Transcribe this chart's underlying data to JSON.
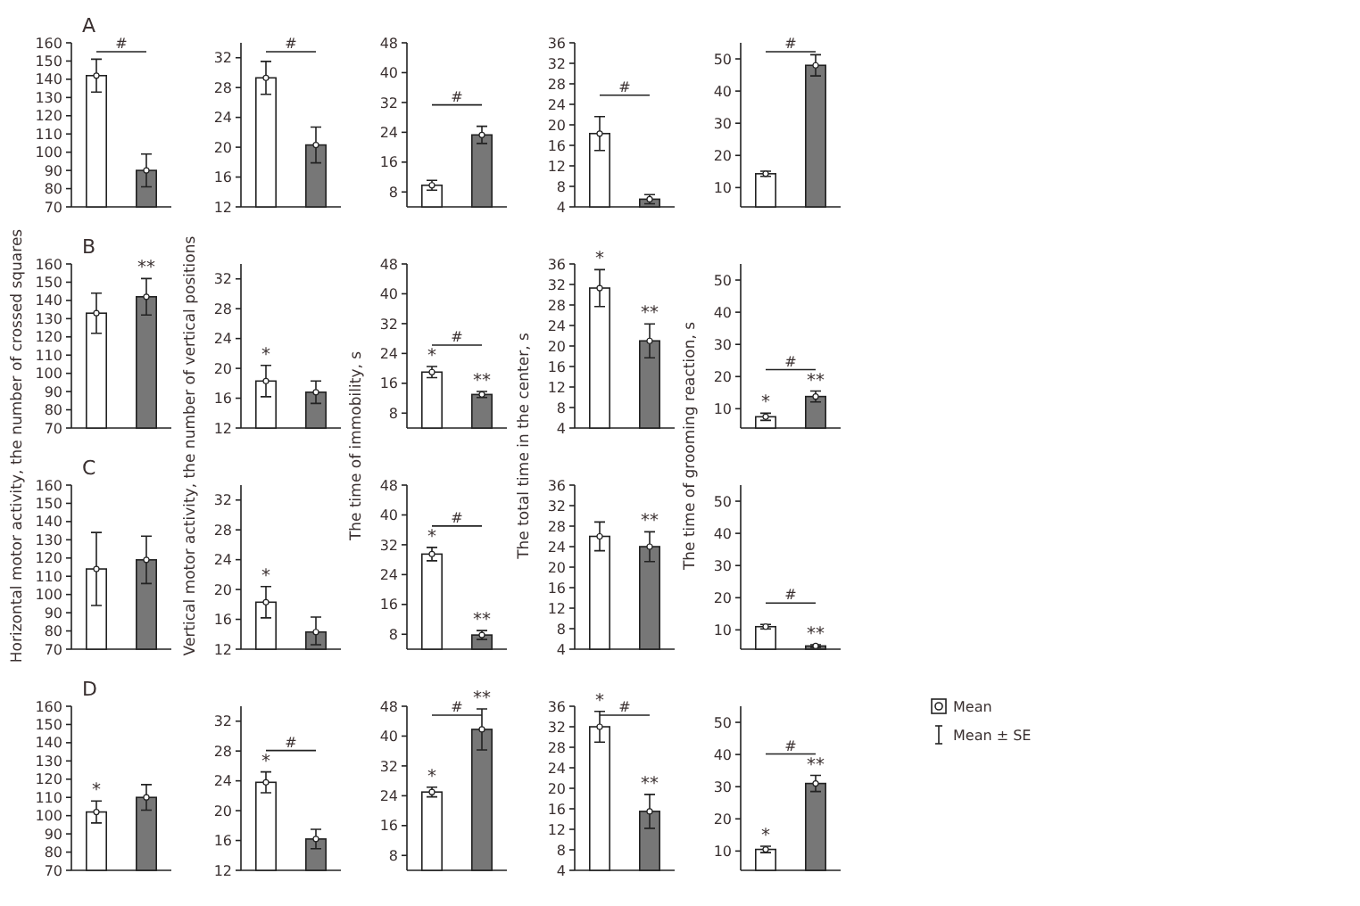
{
  "chart_data": [
    {
      "type": "bar",
      "title": "A",
      "categories": [
        null,
        null
      ],
      "series": [
        {
          "type": "bar",
          "values": [
            142,
            90
          ],
          "colors": [
            "#ffffff",
            "#777777"
          ],
          "errors": [
            9,
            9
          ]
        },
        {
          "type": "scatter",
          "values": [
            142,
            90
          ],
          "color": "#ffffff"
        }
      ],
      "marker": "circle",
      "ylim": [
        70,
        160
      ],
      "yticks": [
        70,
        80,
        90,
        100,
        110,
        120,
        130,
        140,
        150,
        160
      ],
      "tick_labels": "y",
      "annotations": [
        "#"
      ]
    },
    {
      "type": "bar",
      "categories": [
        null,
        null
      ],
      "series": [
        {
          "type": "bar",
          "values": [
            29.3,
            20.3
          ],
          "colors": [
            "#ffffff",
            "#777777"
          ],
          "errors": [
            2.2,
            2.4
          ]
        },
        {
          "type": "scatter",
          "values": [
            29.3,
            20.3
          ],
          "color": "#ffffff"
        }
      ],
      "marker": "circle",
      "ylim": [
        12,
        34
      ],
      "yticks": [
        12,
        16,
        20,
        24,
        28,
        32
      ],
      "tick_labels": "y",
      "annotations": [
        "#"
      ]
    },
    {
      "type": "bar",
      "categories": [
        null,
        null
      ],
      "series": [
        {
          "type": "bar",
          "values": [
            9.8,
            23.3
          ],
          "colors": [
            "#ffffff",
            "#777777"
          ],
          "errors": [
            1.3,
            2.3
          ]
        },
        {
          "type": "scatter",
          "values": [
            9.8,
            23.3
          ],
          "color": "#ffffff"
        }
      ],
      "marker": "circle",
      "ylim": [
        4,
        48
      ],
      "yticks": [
        8,
        16,
        24,
        32,
        40,
        48
      ],
      "tick_labels": "y",
      "annotations": [
        "#"
      ]
    },
    {
      "type": "bar",
      "categories": [
        null,
        null
      ],
      "series": [
        {
          "type": "bar",
          "values": [
            18.3,
            5.5
          ],
          "colors": [
            "#ffffff",
            "#777777"
          ],
          "errors": [
            3.3,
            0.9
          ]
        },
        {
          "type": "scatter",
          "values": [
            18.3,
            5.5
          ],
          "color": "#ffffff"
        }
      ],
      "marker": "circle",
      "ylim": [
        4,
        36
      ],
      "yticks": [
        4,
        8,
        12,
        16,
        20,
        24,
        28,
        32,
        36
      ],
      "tick_labels": "y",
      "annotations": [
        "#"
      ]
    },
    {
      "type": "bar",
      "categories": [
        null,
        null
      ],
      "series": [
        {
          "type": "bar",
          "values": [
            14.3,
            48
          ],
          "colors": [
            "#ffffff",
            "#777777"
          ],
          "errors": [
            0.8,
            3.3
          ]
        },
        {
          "type": "scatter",
          "values": [
            14.3,
            48
          ],
          "color": "#ffffff"
        }
      ],
      "marker": "circle",
      "ylim": [
        4,
        55
      ],
      "yticks": [
        10,
        20,
        30,
        40,
        50
      ],
      "tick_labels": "y",
      "annotations": [
        "#"
      ]
    },
    {
      "type": "bar",
      "title": "B",
      "categories": [
        null,
        null
      ],
      "series": [
        {
          "type": "bar",
          "values": [
            133,
            142
          ],
          "colors": [
            "#ffffff",
            "#777777"
          ],
          "errors": [
            11,
            10
          ],
          "value_labels": [
            null,
            "**"
          ]
        },
        {
          "type": "scatter",
          "values": [
            133,
            142
          ],
          "color": "#ffffff"
        }
      ],
      "marker": "circle",
      "ylim": [
        70,
        160
      ],
      "yticks": [
        70,
        80,
        90,
        100,
        110,
        120,
        130,
        140,
        150,
        160
      ],
      "tick_labels": "y"
    },
    {
      "type": "bar",
      "categories": [
        null,
        null
      ],
      "series": [
        {
          "type": "bar",
          "values": [
            18.3,
            16.8
          ],
          "colors": [
            "#ffffff",
            "#777777"
          ],
          "errors": [
            2.1,
            1.5
          ],
          "value_labels": [
            "*",
            null
          ]
        },
        {
          "type": "scatter",
          "values": [
            18.3,
            16.8
          ],
          "color": "#ffffff"
        }
      ],
      "marker": "circle",
      "ylim": [
        12,
        34
      ],
      "yticks": [
        12,
        16,
        20,
        24,
        28,
        32
      ],
      "tick_labels": "y"
    },
    {
      "type": "bar",
      "categories": [
        null,
        null
      ],
      "series": [
        {
          "type": "bar",
          "values": [
            19,
            13
          ],
          "colors": [
            "#ffffff",
            "#777777"
          ],
          "errors": [
            1.5,
            0.8
          ],
          "value_labels": [
            "*",
            "**"
          ]
        },
        {
          "type": "scatter",
          "values": [
            19,
            13
          ],
          "color": "#ffffff"
        }
      ],
      "marker": "circle",
      "ylim": [
        4,
        48
      ],
      "yticks": [
        8,
        16,
        24,
        32,
        40,
        48
      ],
      "tick_labels": "y",
      "annotations": [
        "#"
      ]
    },
    {
      "type": "bar",
      "categories": [
        null,
        null
      ],
      "series": [
        {
          "type": "bar",
          "values": [
            31.3,
            21
          ],
          "colors": [
            "#ffffff",
            "#777777"
          ],
          "errors": [
            3.6,
            3.3
          ],
          "value_labels": [
            "*",
            "**"
          ]
        },
        {
          "type": "scatter",
          "values": [
            31.3,
            21
          ],
          "color": "#ffffff"
        }
      ],
      "marker": "circle",
      "ylim": [
        4,
        36
      ],
      "yticks": [
        4,
        8,
        12,
        16,
        20,
        24,
        28,
        32,
        36
      ],
      "tick_labels": "y"
    },
    {
      "type": "bar",
      "categories": [
        null,
        null
      ],
      "series": [
        {
          "type": "bar",
          "values": [
            7.5,
            13.8
          ],
          "colors": [
            "#ffffff",
            "#777777"
          ],
          "errors": [
            1.1,
            1.7
          ],
          "value_labels": [
            "*",
            "**"
          ]
        },
        {
          "type": "scatter",
          "values": [
            7.5,
            13.8
          ],
          "color": "#ffffff"
        }
      ],
      "marker": "circle",
      "ylim": [
        4,
        55
      ],
      "yticks": [
        10,
        20,
        30,
        40,
        50
      ],
      "tick_labels": "y",
      "annotations": [
        "#"
      ]
    },
    {
      "type": "bar",
      "title": "C",
      "ylabel": "Horizontal motor activity, the number of crossed squares",
      "categories": [
        null,
        null
      ],
      "series": [
        {
          "type": "bar",
          "values": [
            114,
            119
          ],
          "colors": [
            "#ffffff",
            "#777777"
          ],
          "errors": [
            20,
            13
          ]
        },
        {
          "type": "scatter",
          "values": [
            114,
            119
          ],
          "color": "#ffffff"
        }
      ],
      "marker": "circle",
      "ylim": [
        70,
        160
      ],
      "yticks": [
        70,
        80,
        90,
        100,
        110,
        120,
        130,
        140,
        150,
        160
      ],
      "tick_labels": "y"
    },
    {
      "type": "bar",
      "ylabel": "Vertical motor activity, the number of vertical positions",
      "categories": [
        null,
        null
      ],
      "series": [
        {
          "type": "bar",
          "values": [
            18.3,
            14.3
          ],
          "colors": [
            "#ffffff",
            "#777777"
          ],
          "errors": [
            2.1,
            [
              12.6,
              16.3
            ]
          ],
          "value_labels": [
            "*",
            null
          ]
        },
        {
          "type": "scatter",
          "values": [
            18.3,
            14.3
          ],
          "color": "#ffffff"
        }
      ],
      "marker": "circle",
      "ylim": [
        12,
        34
      ],
      "yticks": [
        12,
        16,
        20,
        24,
        28,
        32
      ],
      "tick_labels": "y"
    },
    {
      "type": "bar",
      "ylabel": "The time of immobility, s",
      "categories": [
        null,
        null
      ],
      "series": [
        {
          "type": "bar",
          "values": [
            29.5,
            7.8
          ],
          "colors": [
            "#ffffff",
            "#777777"
          ],
          "errors": [
            1.8,
            1.2
          ],
          "value_labels": [
            "*",
            "**"
          ]
        },
        {
          "type": "scatter",
          "values": [
            29.5,
            7.8
          ],
          "color": "#ffffff"
        }
      ],
      "marker": "circle",
      "ylim": [
        4,
        48
      ],
      "yticks": [
        8,
        16,
        24,
        32,
        40,
        48
      ],
      "tick_labels": "y",
      "annotations": [
        "#"
      ]
    },
    {
      "type": "bar",
      "ylabel": "The total time in the center, s",
      "categories": [
        null,
        null
      ],
      "series": [
        {
          "type": "bar",
          "values": [
            26,
            24
          ],
          "colors": [
            "#ffffff",
            "#777777"
          ],
          "errors": [
            2.8,
            2.9
          ],
          "value_labels": [
            null,
            "**"
          ]
        },
        {
          "type": "scatter",
          "values": [
            26,
            24
          ],
          "color": "#ffffff"
        }
      ],
      "marker": "circle",
      "ylim": [
        4,
        36
      ],
      "yticks": [
        4,
        8,
        12,
        16,
        20,
        24,
        28,
        32,
        36
      ],
      "tick_labels": "y"
    },
    {
      "type": "bar",
      "ylabel": "The time of grooming reaction, s",
      "categories": [
        null,
        null
      ],
      "series": [
        {
          "type": "bar",
          "values": [
            11,
            5
          ],
          "colors": [
            "#ffffff",
            "#777777"
          ],
          "errors": [
            0.7,
            0.4
          ],
          "value_labels": [
            null,
            "**"
          ]
        },
        {
          "type": "scatter",
          "values": [
            11,
            5
          ],
          "color": "#ffffff"
        }
      ],
      "marker": "circle",
      "ylim": [
        4,
        55
      ],
      "yticks": [
        10,
        20,
        30,
        40,
        50
      ],
      "tick_labels": "y",
      "annotations": [
        "#"
      ]
    },
    {
      "type": "bar",
      "title": "D",
      "categories": [
        null,
        null
      ],
      "series": [
        {
          "type": "bar",
          "values": [
            102,
            110
          ],
          "colors": [
            "#ffffff",
            "#777777"
          ],
          "errors": [
            6,
            7
          ],
          "value_labels": [
            "*",
            null
          ]
        },
        {
          "type": "scatter",
          "values": [
            102,
            110
          ],
          "color": "#ffffff"
        }
      ],
      "marker": "circle",
      "ylim": [
        70,
        160
      ],
      "yticks": [
        70,
        80,
        90,
        100,
        110,
        120,
        130,
        140,
        150,
        160
      ],
      "tick_labels": "y"
    },
    {
      "type": "bar",
      "categories": [
        null,
        null
      ],
      "series": [
        {
          "type": "bar",
          "values": [
            23.8,
            16.2
          ],
          "colors": [
            "#ffffff",
            "#777777"
          ],
          "errors": [
            1.4,
            1.3
          ],
          "value_labels": [
            "*",
            null
          ]
        },
        {
          "type": "scatter",
          "values": [
            23.8,
            16.2
          ],
          "color": "#ffffff"
        }
      ],
      "marker": "circle",
      "ylim": [
        12,
        34
      ],
      "yticks": [
        12,
        16,
        20,
        24,
        28,
        32
      ],
      "tick_labels": "y",
      "annotations": [
        "#"
      ]
    },
    {
      "type": "bar",
      "categories": [
        null,
        null
      ],
      "series": [
        {
          "type": "bar",
          "values": [
            25,
            41.8
          ],
          "colors": [
            "#ffffff",
            "#777777"
          ],
          "errors": [
            1.3,
            5.5
          ],
          "value_labels": [
            "*",
            "**"
          ]
        },
        {
          "type": "scatter",
          "values": [
            25,
            41.8
          ],
          "color": "#ffffff"
        }
      ],
      "marker": "circle",
      "ylim": [
        4,
        48
      ],
      "yticks": [
        8,
        16,
        24,
        32,
        40,
        48
      ],
      "tick_labels": "y",
      "annotations": [
        "#"
      ]
    },
    {
      "type": "bar",
      "categories": [
        null,
        null
      ],
      "series": [
        {
          "type": "bar",
          "values": [
            32,
            15.5
          ],
          "colors": [
            "#ffffff",
            "#777777"
          ],
          "errors": [
            3,
            3.3
          ],
          "value_labels": [
            "*",
            "**"
          ]
        },
        {
          "type": "scatter",
          "values": [
            32,
            15.5
          ],
          "color": "#ffffff"
        }
      ],
      "marker": "circle",
      "ylim": [
        4,
        36
      ],
      "yticks": [
        4,
        8,
        12,
        16,
        20,
        24,
        28,
        32,
        36
      ],
      "tick_labels": "y",
      "annotations": [
        "#"
      ]
    },
    {
      "type": "bar",
      "categories": [
        null,
        null
      ],
      "series": [
        {
          "type": "bar",
          "values": [
            10.5,
            31
          ],
          "colors": [
            "#ffffff",
            "#777777"
          ],
          "errors": [
            1,
            2.5
          ],
          "value_labels": [
            "*",
            "**"
          ]
        },
        {
          "type": "scatter",
          "values": [
            10.5,
            31
          ],
          "color": "#ffffff"
        }
      ],
      "marker": "circle",
      "ylim": [
        4,
        55
      ],
      "yticks": [
        10,
        20,
        30,
        40,
        50
      ],
      "tick_labels": "y",
      "annotations": [
        "#",
        "Mean",
        "Mean ± SE"
      ]
    }
  ]
}
